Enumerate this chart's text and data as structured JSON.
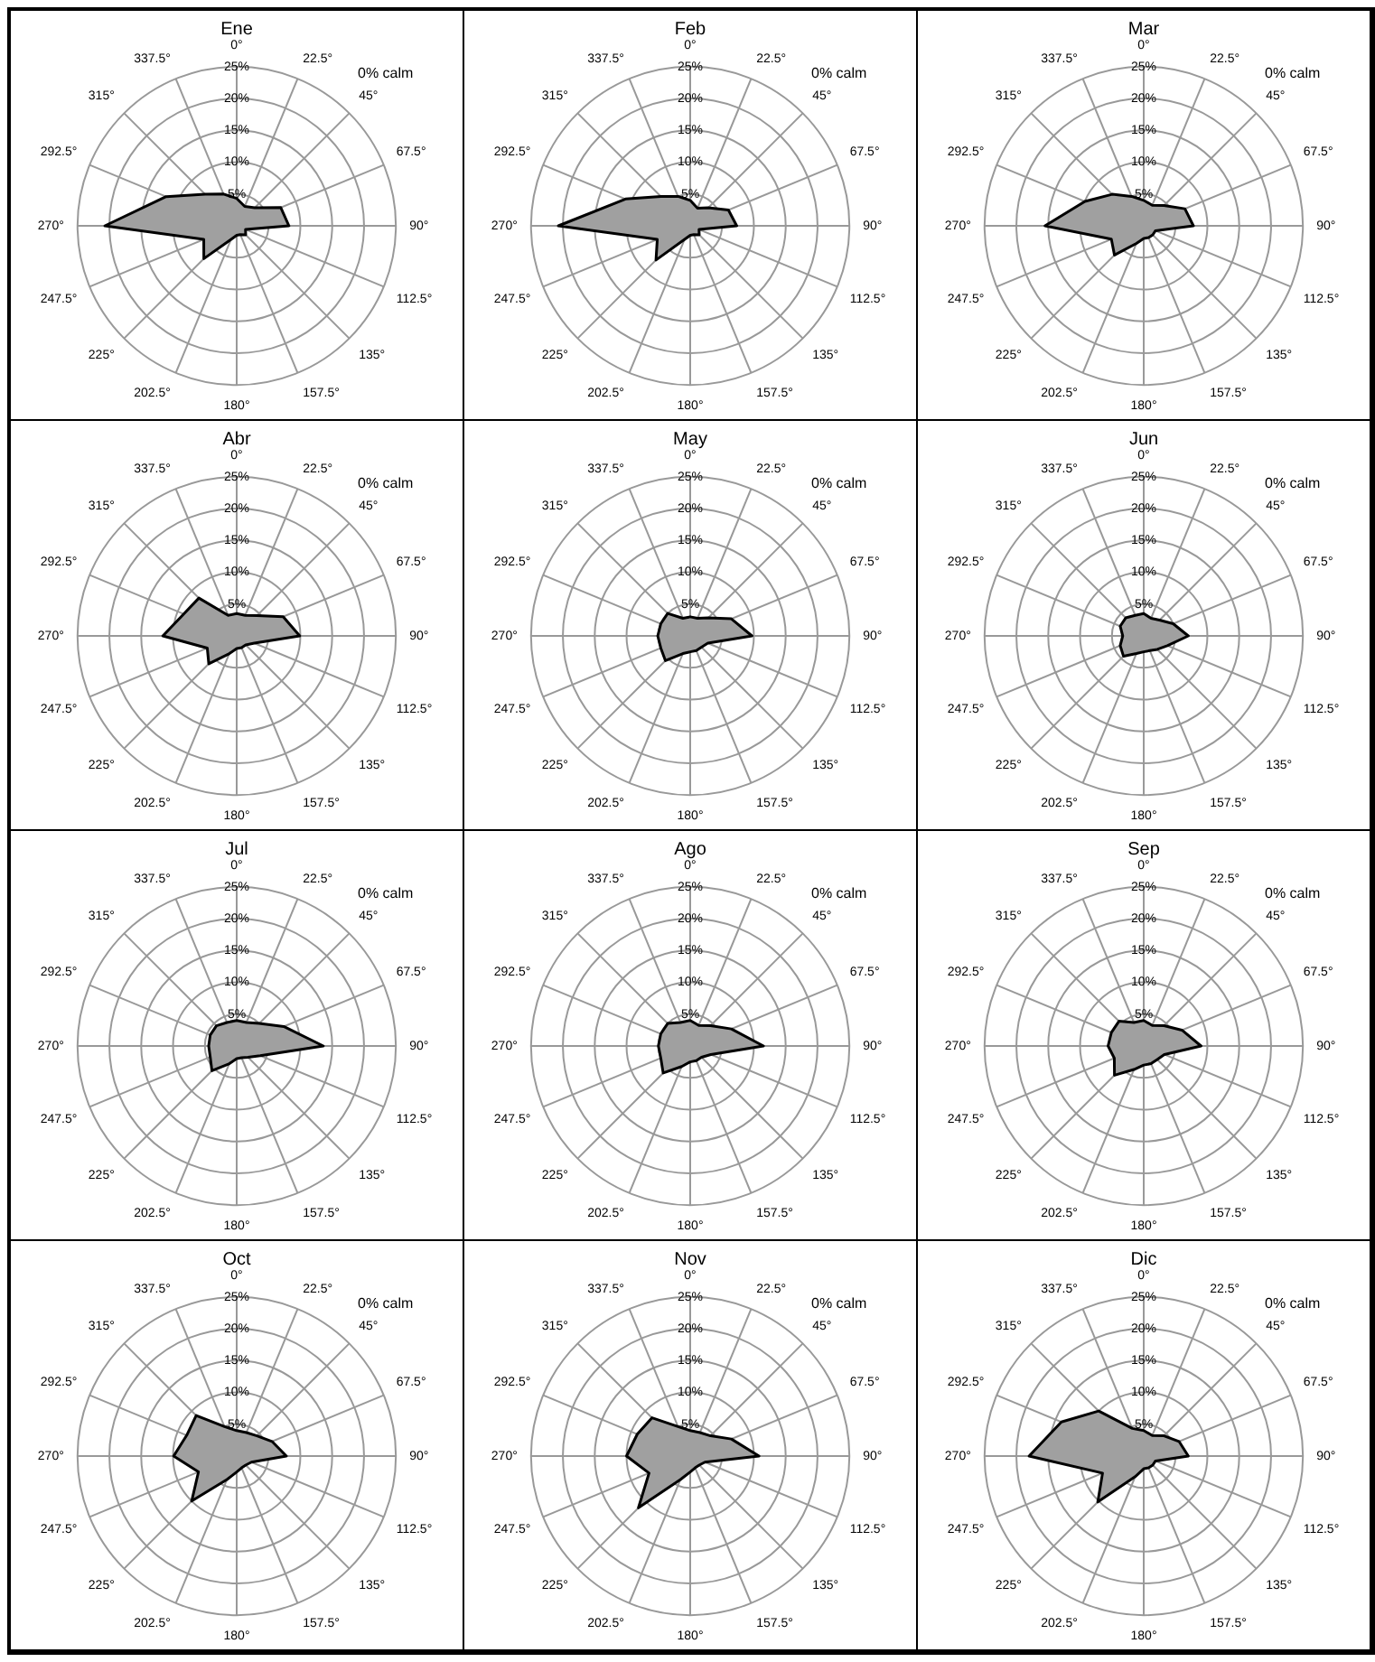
{
  "chart_data": [
    {
      "type": "radar",
      "title": "Ene",
      "categories": [
        "0°",
        "22.5°",
        "45°",
        "67.5°",
        "90°",
        "112.5°",
        "135°",
        "157.5°",
        "180°",
        "202.5°",
        "225°",
        "247.5°",
        "270°",
        "292.5°",
        "315°",
        "337.5°"
      ],
      "series": [
        {
          "color": "#a0a0a0",
          "values": [
            4.3,
            3.3,
            4,
            7.5,
            8.2,
            1.5,
            2,
            1.5,
            1.5,
            2.3,
            7.3,
            5.6,
            20.7,
            12,
            7,
            5.4
          ]
        }
      ],
      "ylim": [
        0,
        25
      ],
      "yticks": [
        {
          "value": 5,
          "label": "5%"
        },
        {
          "value": 10,
          "label": "10%"
        },
        {
          "value": 15,
          "label": "15%"
        },
        {
          "value": 20,
          "label": "20%"
        },
        {
          "value": 25,
          "label": "25%"
        }
      ],
      "grid": true,
      "annotations": [
        "0% calm"
      ]
    },
    {
      "type": "radar",
      "title": "Feb",
      "categories": [
        "0°",
        "22.5°",
        "45°",
        "67.5°",
        "90°",
        "112.5°",
        "135°",
        "157.5°",
        "180°",
        "202.5°",
        "225°",
        "247.5°",
        "270°",
        "292.5°",
        "315°",
        "337.5°"
      ],
      "series": [
        {
          "color": "#a0a0a0",
          "values": [
            4,
            3,
            4,
            6.5,
            7.3,
            1.5,
            2,
            1.5,
            1.5,
            2.3,
            7.6,
            5.6,
            20.7,
            11,
            6.5,
            5
          ]
        }
      ],
      "ylim": [
        0,
        25
      ],
      "yticks": [
        {
          "value": 5,
          "label": "5%"
        },
        {
          "value": 10,
          "label": "10%"
        },
        {
          "value": 15,
          "label": "15%"
        },
        {
          "value": 20,
          "label": "20%"
        },
        {
          "value": 25,
          "label": "25%"
        }
      ],
      "grid": true,
      "annotations": [
        "0% calm"
      ]
    },
    {
      "type": "radar",
      "title": "Mar",
      "categories": [
        "0°",
        "22.5°",
        "45°",
        "67.5°",
        "90°",
        "112.5°",
        "135°",
        "157.5°",
        "180°",
        "202.5°",
        "225°",
        "247.5°",
        "270°",
        "292.5°",
        "315°",
        "337.5°"
      ],
      "series": [
        {
          "color": "#a0a0a0",
          "values": [
            4,
            3.5,
            4.5,
            7,
            7.8,
            2,
            2,
            2,
            2,
            3,
            6.5,
            5.5,
            15.5,
            10,
            7,
            5
          ]
        }
      ],
      "ylim": [
        0,
        25
      ],
      "yticks": [
        {
          "value": 5,
          "label": "5%"
        },
        {
          "value": 10,
          "label": "10%"
        },
        {
          "value": 15,
          "label": "15%"
        },
        {
          "value": 20,
          "label": "20%"
        },
        {
          "value": 25,
          "label": "25%"
        }
      ],
      "grid": true,
      "annotations": [
        "0% calm"
      ]
    },
    {
      "type": "radar",
      "title": "Abr",
      "categories": [
        "0°",
        "22.5°",
        "45°",
        "67.5°",
        "90°",
        "112.5°",
        "135°",
        "157.5°",
        "180°",
        "202.5°",
        "225°",
        "247.5°",
        "270°",
        "292.5°",
        "315°",
        "337.5°"
      ],
      "series": [
        {
          "color": "#a0a0a0",
          "values": [
            3.5,
            3.5,
            4.5,
            7.9,
            9.9,
            3,
            2,
            2,
            2,
            3,
            6.2,
            5,
            11.6,
            9,
            8.4,
            3.5
          ]
        }
      ],
      "ylim": [
        0,
        25
      ],
      "yticks": [
        {
          "value": 5,
          "label": "5%"
        },
        {
          "value": 10,
          "label": "10%"
        },
        {
          "value": 15,
          "label": "15%"
        },
        {
          "value": 20,
          "label": "20%"
        },
        {
          "value": 25,
          "label": "25%"
        }
      ],
      "grid": true,
      "annotations": [
        "0% calm"
      ]
    },
    {
      "type": "radar",
      "title": "May",
      "categories": [
        "0°",
        "22.5°",
        "45°",
        "67.5°",
        "90°",
        "112.5°",
        "135°",
        "157.5°",
        "180°",
        "202.5°",
        "225°",
        "247.5°",
        "270°",
        "292.5°",
        "315°",
        "337.5°"
      ],
      "series": [
        {
          "color": "#a0a0a0",
          "values": [
            3,
            3,
            4,
            7,
            9.7,
            3,
            2.5,
            2.5,
            2.5,
            3,
            5.5,
            5,
            5.1,
            5,
            5,
            3
          ]
        }
      ],
      "ylim": [
        0,
        25
      ],
      "yticks": [
        {
          "value": 5,
          "label": "5%"
        },
        {
          "value": 10,
          "label": "10%"
        },
        {
          "value": 15,
          "label": "15%"
        },
        {
          "value": 20,
          "label": "20%"
        },
        {
          "value": 25,
          "label": "25%"
        }
      ],
      "grid": true,
      "annotations": [
        "0% calm"
      ]
    },
    {
      "type": "radar",
      "title": "Jun",
      "categories": [
        "0°",
        "22.5°",
        "45°",
        "67.5°",
        "90°",
        "112.5°",
        "135°",
        "157.5°",
        "180°",
        "202.5°",
        "225°",
        "247.5°",
        "270°",
        "292.5°",
        "315°",
        "337.5°"
      ],
      "series": [
        {
          "color": "#a0a0a0",
          "values": [
            3.5,
            3,
            3.5,
            5,
            7,
            4,
            3,
            2.5,
            2.5,
            3,
            4.5,
            4,
            3.3,
            4,
            4,
            3.5
          ]
        }
      ],
      "ylim": [
        0,
        25
      ],
      "yticks": [
        {
          "value": 5,
          "label": "5%"
        },
        {
          "value": 10,
          "label": "10%"
        },
        {
          "value": 15,
          "label": "15%"
        },
        {
          "value": 20,
          "label": "20%"
        },
        {
          "value": 25,
          "label": "25%"
        }
      ],
      "grid": true,
      "annotations": [
        "0% calm"
      ]
    },
    {
      "type": "radar",
      "title": "Jul",
      "categories": [
        "0°",
        "22.5°",
        "45°",
        "67.5°",
        "90°",
        "112.5°",
        "135°",
        "157.5°",
        "180°",
        "202.5°",
        "225°",
        "247.5°",
        "270°",
        "292.5°",
        "315°",
        "337.5°"
      ],
      "series": [
        {
          "color": "#a0a0a0",
          "values": [
            4,
            4,
            5,
            8,
            13.6,
            4,
            2.5,
            2,
            2,
            3,
            5.5,
            4.5,
            4.4,
            4.5,
            4.5,
            4
          ]
        }
      ],
      "ylim": [
        0,
        25
      ],
      "yticks": [
        {
          "value": 5,
          "label": "5%"
        },
        {
          "value": 10,
          "label": "10%"
        },
        {
          "value": 15,
          "label": "15%"
        },
        {
          "value": 20,
          "label": "20%"
        },
        {
          "value": 25,
          "label": "25%"
        }
      ],
      "grid": true,
      "annotations": [
        "0% calm"
      ]
    },
    {
      "type": "radar",
      "title": "Ago",
      "categories": [
        "0°",
        "22.5°",
        "45°",
        "67.5°",
        "90°",
        "112.5°",
        "135°",
        "157.5°",
        "180°",
        "202.5°",
        "225°",
        "247.5°",
        "270°",
        "292.5°",
        "315°",
        "337.5°"
      ],
      "series": [
        {
          "color": "#a0a0a0",
          "values": [
            4,
            3.5,
            4.5,
            7,
            11.5,
            3.5,
            2.5,
            2.5,
            2.5,
            3.5,
            6,
            5,
            5,
            5,
            5,
            4
          ]
        }
      ],
      "ylim": [
        0,
        25
      ],
      "yticks": [
        {
          "value": 5,
          "label": "5%"
        },
        {
          "value": 10,
          "label": "10%"
        },
        {
          "value": 15,
          "label": "15%"
        },
        {
          "value": 20,
          "label": "20%"
        },
        {
          "value": 25,
          "label": "25%"
        }
      ],
      "grid": true,
      "annotations": [
        "0% calm"
      ]
    },
    {
      "type": "radar",
      "title": "Sep",
      "categories": [
        "0°",
        "22.5°",
        "45°",
        "67.5°",
        "90°",
        "112.5°",
        "135°",
        "157.5°",
        "180°",
        "202.5°",
        "225°",
        "247.5°",
        "270°",
        "292.5°",
        "315°",
        "337.5°"
      ],
      "series": [
        {
          "color": "#a0a0a0",
          "values": [
            4,
            3.5,
            4.5,
            6.5,
            9,
            3.5,
            3,
            3,
            3,
            4,
            6.5,
            5,
            5.6,
            5.5,
            5.5,
            4
          ]
        }
      ],
      "ylim": [
        0,
        25
      ],
      "yticks": [
        {
          "value": 5,
          "label": "5%"
        },
        {
          "value": 10,
          "label": "10%"
        },
        {
          "value": 15,
          "label": "15%"
        },
        {
          "value": 20,
          "label": "20%"
        },
        {
          "value": 25,
          "label": "25%"
        }
      ],
      "grid": true,
      "annotations": [
        "0% calm"
      ]
    },
    {
      "type": "radar",
      "title": "Oct",
      "categories": [
        "0°",
        "22.5°",
        "45°",
        "67.5°",
        "90°",
        "112.5°",
        "135°",
        "157.5°",
        "180°",
        "202.5°",
        "225°",
        "247.5°",
        "270°",
        "292.5°",
        "315°",
        "337.5°"
      ],
      "series": [
        {
          "color": "#a0a0a0",
          "values": [
            4,
            4,
            4.5,
            6,
            7.8,
            2.5,
            2,
            2,
            2.5,
            4,
            10,
            6.5,
            9.9,
            8.5,
            9,
            5
          ]
        }
      ],
      "ylim": [
        0,
        25
      ],
      "yticks": [
        {
          "value": 5,
          "label": "5%"
        },
        {
          "value": 10,
          "label": "10%"
        },
        {
          "value": 15,
          "label": "15%"
        },
        {
          "value": 20,
          "label": "20%"
        },
        {
          "value": 25,
          "label": "25%"
        }
      ],
      "grid": true,
      "annotations": [
        "0% calm"
      ]
    },
    {
      "type": "radar",
      "title": "Nov",
      "categories": [
        "0°",
        "22.5°",
        "45°",
        "67.5°",
        "90°",
        "112.5°",
        "135°",
        "157.5°",
        "180°",
        "202.5°",
        "225°",
        "247.5°",
        "270°",
        "292.5°",
        "315°",
        "337.5°"
      ],
      "series": [
        {
          "color": "#a0a0a0",
          "values": [
            4,
            4,
            4.5,
            7,
            10.8,
            2.5,
            2,
            2,
            2.5,
            4,
            11.5,
            7,
            10,
            9,
            8.5,
            5
          ]
        }
      ],
      "ylim": [
        0,
        25
      ],
      "yticks": [
        {
          "value": 5,
          "label": "5%"
        },
        {
          "value": 10,
          "label": "10%"
        },
        {
          "value": 15,
          "label": "15%"
        },
        {
          "value": 20,
          "label": "20%"
        },
        {
          "value": 25,
          "label": "25%"
        }
      ],
      "grid": true,
      "annotations": [
        "0% calm"
      ]
    },
    {
      "type": "radar",
      "title": "Dic",
      "categories": [
        "0°",
        "22.5°",
        "45°",
        "67.5°",
        "90°",
        "112.5°",
        "135°",
        "157.5°",
        "180°",
        "202.5°",
        "225°",
        "247.5°",
        "270°",
        "292.5°",
        "315°",
        "337.5°"
      ],
      "series": [
        {
          "color": "#a0a0a0",
          "values": [
            4,
            3.5,
            4.5,
            6,
            7,
            2,
            2,
            2,
            2,
            3.5,
            10.2,
            7,
            18,
            14,
            10,
            4.7
          ]
        }
      ],
      "ylim": [
        0,
        25
      ],
      "yticks": [
        {
          "value": 5,
          "label": "5%"
        },
        {
          "value": 10,
          "label": "10%"
        },
        {
          "value": 15,
          "label": "15%"
        },
        {
          "value": 20,
          "label": "20%"
        },
        {
          "value": 25,
          "label": "25%"
        }
      ],
      "grid": true,
      "annotations": [
        "0% calm"
      ]
    }
  ]
}
